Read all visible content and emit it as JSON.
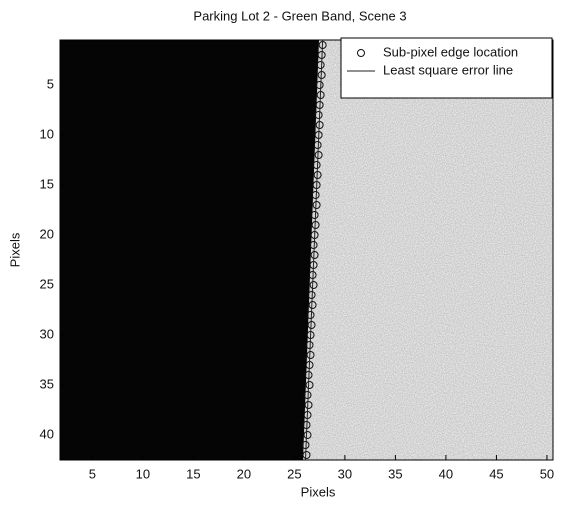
{
  "chart_data": {
    "type": "scatter",
    "title": "Parking Lot 2 - Green Band, Scene 3",
    "xlabel": "Pixels",
    "ylabel": "Pixels",
    "xlim": [
      1.8,
      50.6
    ],
    "ylim": [
      0.5,
      42.5
    ],
    "y_reversed": true,
    "xticks": [
      5,
      10,
      15,
      20,
      25,
      30,
      35,
      40,
      45,
      50
    ],
    "yticks": [
      5,
      10,
      15,
      20,
      25,
      30,
      35,
      40
    ],
    "legend": "northeast",
    "series": [
      {
        "name": "Sub-pixel edge location",
        "style": "marker",
        "color": "#111111",
        "x": [
          27.8,
          27.7,
          27.6,
          27.7,
          27.5,
          27.6,
          27.5,
          27.4,
          27.5,
          27.4,
          27.3,
          27.4,
          27.2,
          27.3,
          27.2,
          27.1,
          27.2,
          27.0,
          27.1,
          27.0,
          26.9,
          27.0,
          26.9,
          26.8,
          26.9,
          26.7,
          26.8,
          26.6,
          26.7,
          26.6,
          26.5,
          26.6,
          26.5,
          26.4,
          26.5,
          26.3,
          26.4,
          26.3,
          26.2,
          26.3,
          26.1,
          26.2
        ],
        "y": [
          1,
          2,
          3,
          4,
          5,
          6,
          7,
          8,
          9,
          10,
          11,
          12,
          13,
          14,
          15,
          16,
          17,
          18,
          19,
          20,
          21,
          22,
          23,
          24,
          25,
          26,
          27,
          28,
          29,
          30,
          31,
          32,
          33,
          34,
          35,
          36,
          37,
          38,
          39,
          40,
          41,
          42
        ]
      },
      {
        "name": "Least square error line",
        "style": "line",
        "color": "#222222",
        "x": [
          27.8,
          26.1
        ],
        "y": [
          0.5,
          42.5
        ]
      }
    ]
  }
}
